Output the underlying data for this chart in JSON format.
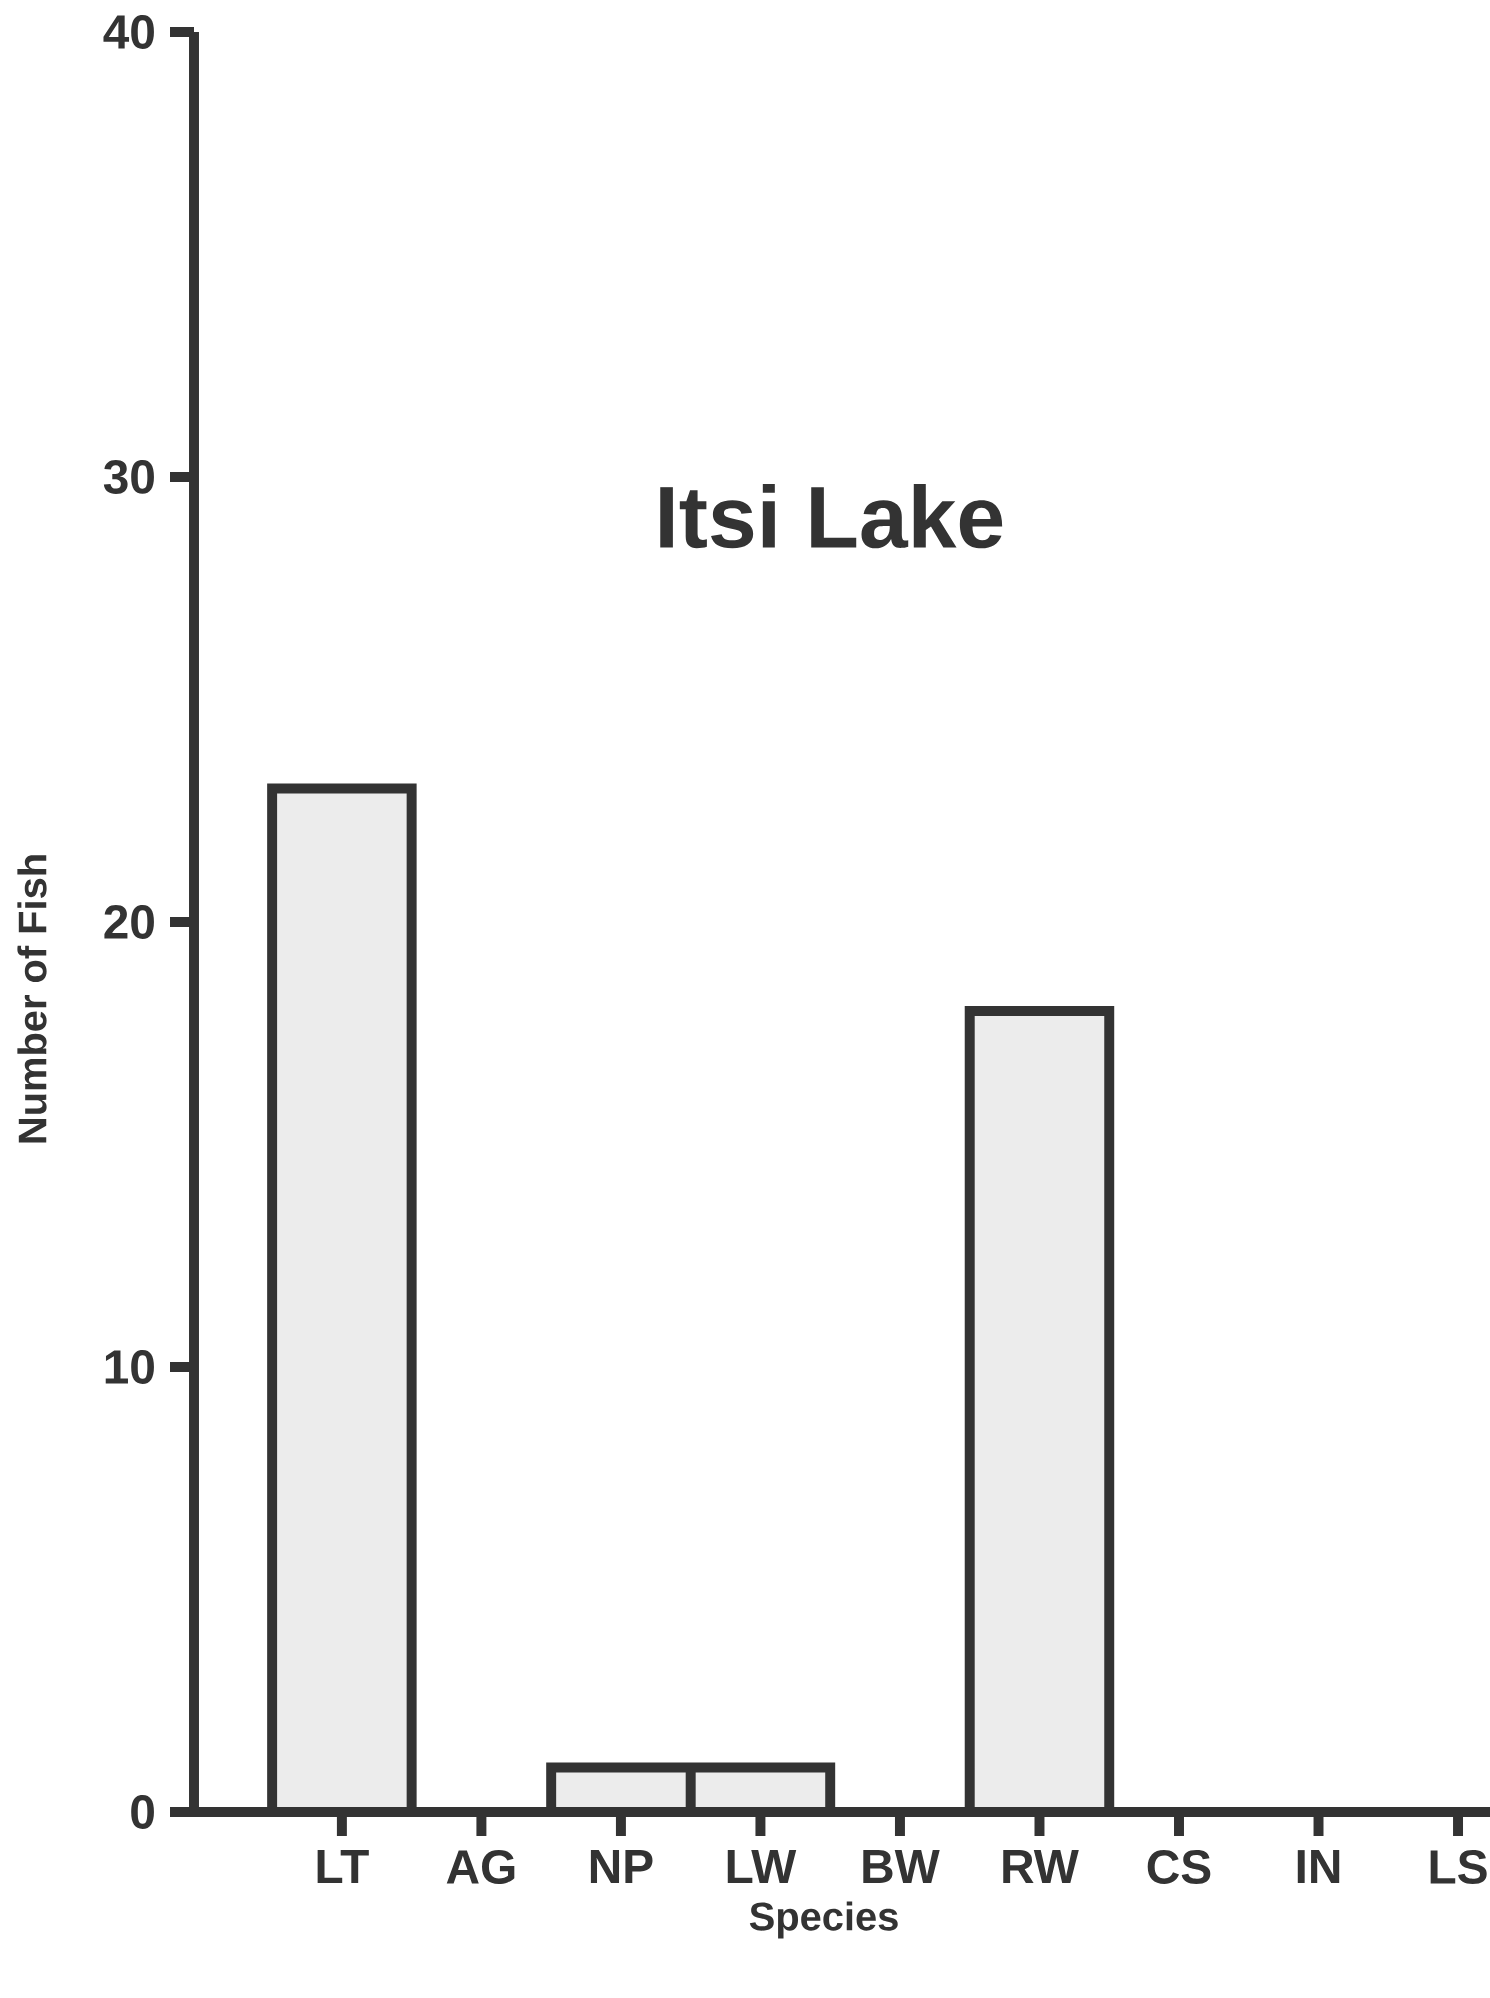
{
  "chart_data": {
    "type": "bar",
    "title": "Itsi Lake",
    "xlabel": "Species",
    "ylabel": "Number of Fish",
    "categories": [
      "LT",
      "AG",
      "NP",
      "LW",
      "BW",
      "RW",
      "CS",
      "IN",
      "LS"
    ],
    "values": [
      23,
      0,
      1,
      1,
      0,
      18,
      0,
      0,
      0
    ],
    "color": "#ececec",
    "ylim": [
      0,
      40
    ],
    "yticks": [
      0,
      10,
      20,
      30,
      40
    ],
    "grid": false
  }
}
